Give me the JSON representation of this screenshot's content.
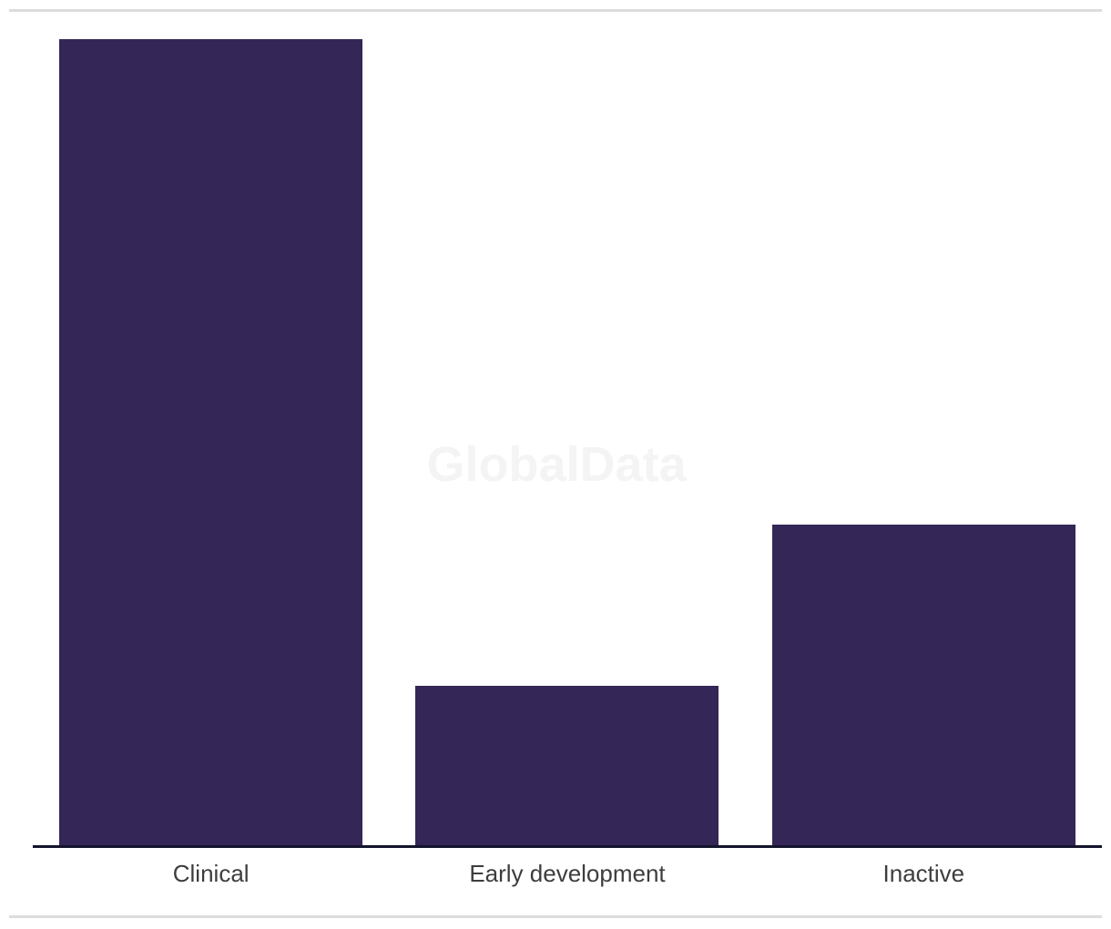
{
  "watermark": {
    "text": "GlobalData",
    "color": "#f4f4f4"
  },
  "dividers": {
    "color": "#dcdcdc"
  },
  "chart_data": {
    "type": "bar",
    "title": "",
    "xlabel": "",
    "ylabel": "",
    "categories": [
      "Clinical",
      "Early development",
      "Inactive"
    ],
    "values": [
      885,
      175,
      352
    ],
    "values_note": "No y-axis, gridlines or data labels are visible; values are relative bar heights in pixels, ratio approximately 5 : 1 : 2",
    "ylim": [
      0,
      928
    ],
    "grid": false,
    "legend": false,
    "bar_color": "#342656",
    "axis_color": "#14142d",
    "label_color": "#3d3d3d"
  }
}
